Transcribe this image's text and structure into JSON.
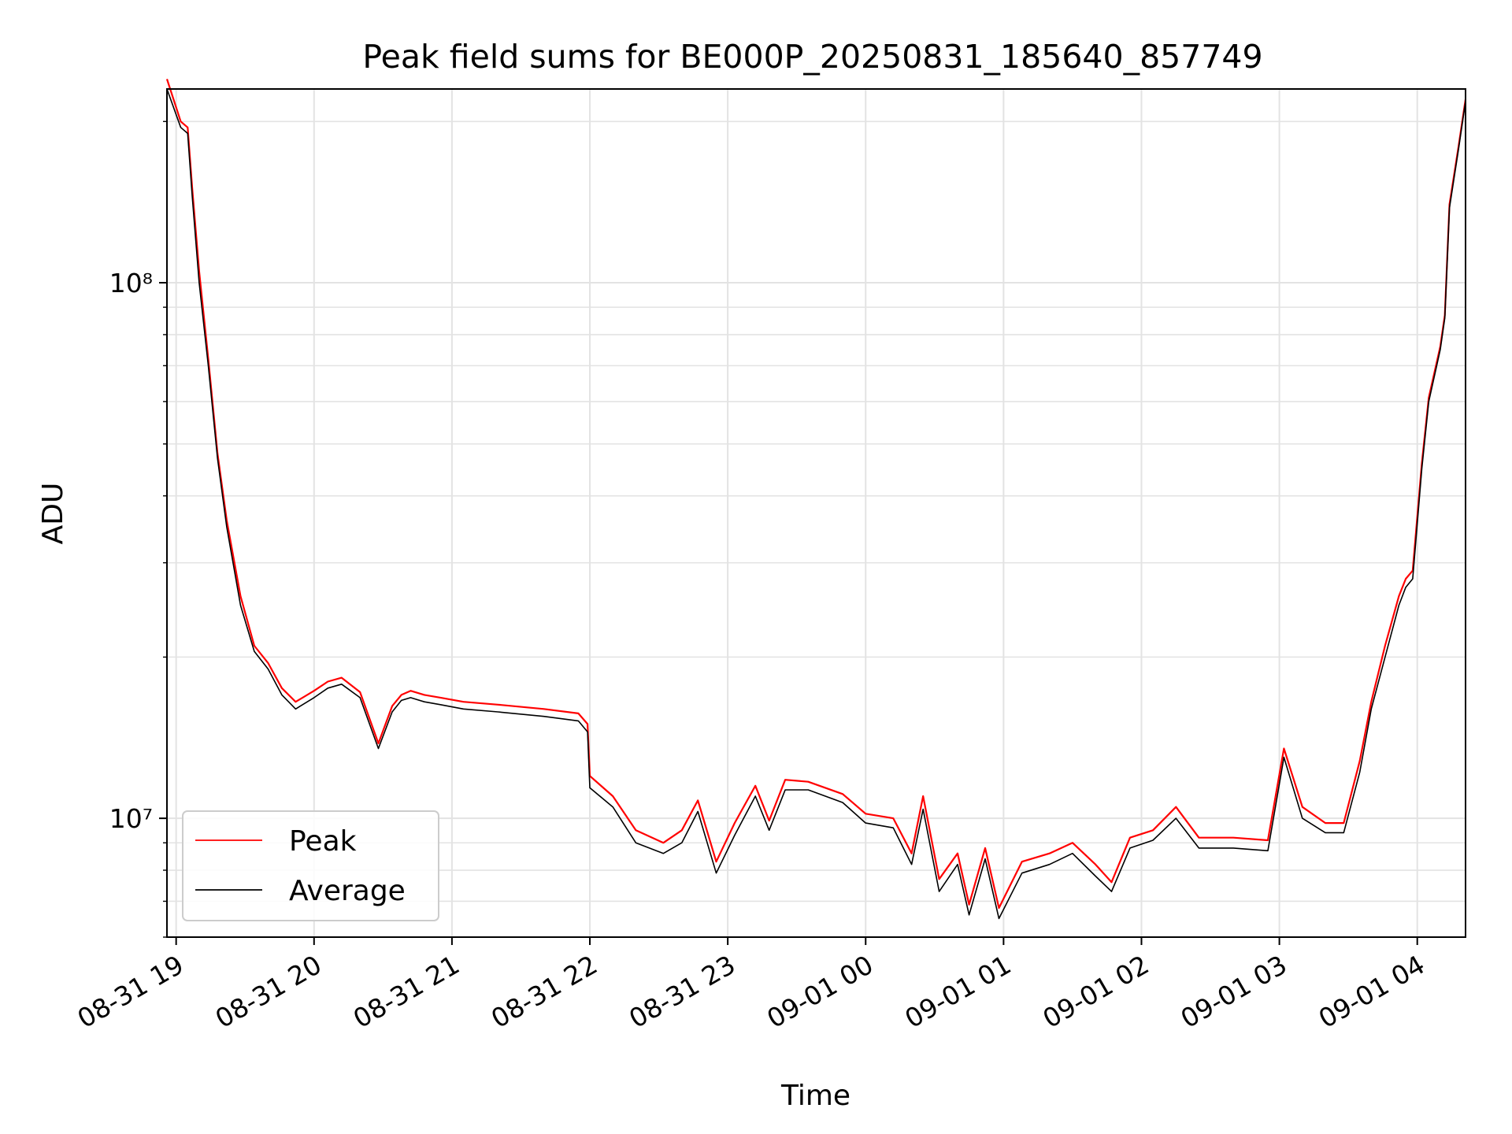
{
  "chart_data": {
    "type": "line",
    "title": "Peak field sums for BE000P_20250831_185640_857749",
    "xlabel": "Time",
    "ylabel": "ADU",
    "y_scale": "log",
    "ylim": [
      6000000,
      230000000
    ],
    "xlim": [
      "2025-08-31T18:56",
      "2025-09-01T04:21"
    ],
    "x_ticks": [
      "08-31 19",
      "08-31 20",
      "08-31 21",
      "08-31 22",
      "08-31 23",
      "09-01 00",
      "09-01 01",
      "09-01 02",
      "09-01 03",
      "09-01 04"
    ],
    "y_ticks": [
      "10⁷",
      "10⁸"
    ],
    "grid": true,
    "legend_position": "lower-left",
    "x": [
      "2025-08-31T18:56",
      "2025-08-31T19:02",
      "2025-08-31T19:05",
      "2025-08-31T19:07",
      "2025-08-31T19:10",
      "2025-08-31T19:14",
      "2025-08-31T19:18",
      "2025-08-31T19:22",
      "2025-08-31T19:28",
      "2025-08-31T19:34",
      "2025-08-31T19:40",
      "2025-08-31T19:46",
      "2025-08-31T19:52",
      "2025-08-31T20:00",
      "2025-08-31T20:06",
      "2025-08-31T20:12",
      "2025-08-31T20:20",
      "2025-08-31T20:28",
      "2025-08-31T20:34",
      "2025-08-31T20:38",
      "2025-08-31T20:42",
      "2025-08-31T20:48",
      "2025-08-31T20:55",
      "2025-08-31T21:05",
      "2025-08-31T21:20",
      "2025-08-31T21:40",
      "2025-08-31T21:55",
      "2025-08-31T21:59",
      "2025-08-31T22:00",
      "2025-08-31T22:10",
      "2025-08-31T22:20",
      "2025-08-31T22:32",
      "2025-08-31T22:40",
      "2025-08-31T22:47",
      "2025-08-31T22:55",
      "2025-08-31T23:03",
      "2025-08-31T23:12",
      "2025-08-31T23:18",
      "2025-08-31T23:25",
      "2025-08-31T23:35",
      "2025-08-31T23:50",
      "2025-09-01T00:00",
      "2025-09-01T00:12",
      "2025-09-01T00:20",
      "2025-09-01T00:25",
      "2025-09-01T00:32",
      "2025-09-01T00:40",
      "2025-09-01T00:45",
      "2025-09-01T00:52",
      "2025-09-01T00:58",
      "2025-09-01T01:08",
      "2025-09-01T01:20",
      "2025-09-01T01:30",
      "2025-09-01T01:40",
      "2025-09-01T01:47",
      "2025-09-01T01:55",
      "2025-09-01T02:05",
      "2025-09-01T02:15",
      "2025-09-01T02:25",
      "2025-09-01T02:40",
      "2025-09-01T02:55",
      "2025-09-01T03:02",
      "2025-09-01T03:10",
      "2025-09-01T03:20",
      "2025-09-01T03:28",
      "2025-09-01T03:35",
      "2025-09-01T03:40",
      "2025-09-01T03:46",
      "2025-09-01T03:52",
      "2025-09-01T03:55",
      "2025-09-01T03:58",
      "2025-09-01T04:02",
      "2025-09-01T04:05",
      "2025-09-01T04:10",
      "2025-09-01T04:12",
      "2025-09-01T04:14",
      "2025-09-01T04:18",
      "2025-09-01T04:21"
    ],
    "series": [
      {
        "name": "Peak",
        "color": "#ff0000",
        "values": [
          240000000,
          200000000,
          195000000,
          150000000,
          105000000,
          72000000,
          48000000,
          36000000,
          26000000,
          21000000,
          19500000,
          17500000,
          16500000,
          17300000,
          18000000,
          18300000,
          17200000,
          13800000,
          16200000,
          17000000,
          17300000,
          17000000,
          16800000,
          16500000,
          16300000,
          16000000,
          15700000,
          15000000,
          12000000,
          11000000,
          9500000,
          9000000,
          9500000,
          10800000,
          8300000,
          9800000,
          11500000,
          9900000,
          11800000,
          11700000,
          11100000,
          10200000,
          10000000,
          8600000,
          11000000,
          7700000,
          8600000,
          6900000,
          8800000,
          6800000,
          8300000,
          8600000,
          9000000,
          8200000,
          7600000,
          9200000,
          9500000,
          10500000,
          9200000,
          9200000,
          9100000,
          13500000,
          10500000,
          9800000,
          9800000,
          12800000,
          16500000,
          21000000,
          26000000,
          28000000,
          29000000,
          46000000,
          61000000,
          76000000,
          87000000,
          140000000,
          180000000,
          220000000
        ]
      },
      {
        "name": "Average",
        "color": "#000000",
        "values": [
          230000000,
          195000000,
          190000000,
          145000000,
          100000000,
          70000000,
          47000000,
          35000000,
          25000000,
          20500000,
          19000000,
          17000000,
          16000000,
          16800000,
          17500000,
          17800000,
          16800000,
          13500000,
          15800000,
          16600000,
          16800000,
          16500000,
          16300000,
          16000000,
          15800000,
          15500000,
          15200000,
          14500000,
          11400000,
          10500000,
          9000000,
          8600000,
          9000000,
          10300000,
          7900000,
          9300000,
          11000000,
          9500000,
          11300000,
          11300000,
          10700000,
          9800000,
          9600000,
          8200000,
          10400000,
          7300000,
          8200000,
          6600000,
          8400000,
          6500000,
          7900000,
          8200000,
          8600000,
          7800000,
          7300000,
          8800000,
          9100000,
          10000000,
          8800000,
          8800000,
          8700000,
          13000000,
          10000000,
          9400000,
          9400000,
          12200000,
          16000000,
          20000000,
          25000000,
          27000000,
          28000000,
          45000000,
          60000000,
          75000000,
          86000000,
          138000000,
          178000000,
          218000000
        ]
      }
    ]
  },
  "legend": [
    {
      "label": "Peak",
      "color": "#ff0000"
    },
    {
      "label": "Average",
      "color": "#000000"
    }
  ]
}
